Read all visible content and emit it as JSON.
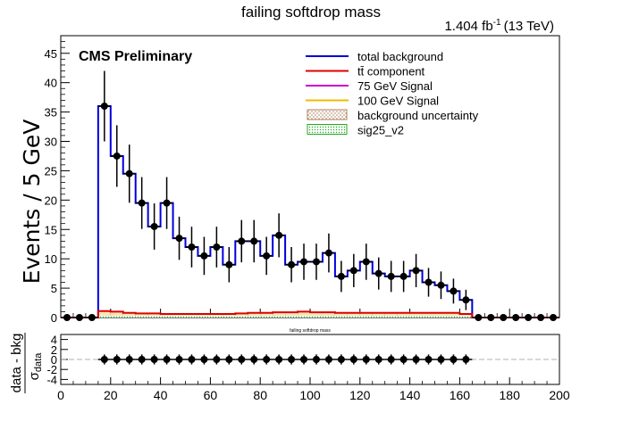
{
  "header": {
    "title": "failing softdrop mass",
    "lumi_label": "1.404 fb",
    "lumi_exp": "-1",
    "energy": "(13 TeV)",
    "cms_label": "CMS Preliminary",
    "ratio_title": "failing softdrop mass"
  },
  "legend": {
    "items": [
      {
        "label": "total background",
        "color": "#0000dd",
        "kind": "line"
      },
      {
        "label": "tt̄ component",
        "color": "#dd0000",
        "kind": "line"
      },
      {
        "label": "75 GeV Signal",
        "color": "#cc00cc",
        "kind": "line"
      },
      {
        "label": "100 GeV Signal",
        "color": "#eebb00",
        "kind": "line"
      },
      {
        "label": "background uncertainty",
        "color": "#b08060",
        "kind": "hatch"
      },
      {
        "label": "sig25_v2",
        "color": "#22aa22",
        "kind": "fill"
      }
    ]
  },
  "chart_data": [
    {
      "type": "bar",
      "panel": "main",
      "title": "failing softdrop mass",
      "ylabel": "Events / 5 GeV",
      "xlim": [
        0,
        200
      ],
      "ylim": [
        0,
        48
      ],
      "yticks": [
        0,
        5,
        10,
        15,
        20,
        25,
        30,
        35,
        40,
        45
      ],
      "bin_edges": [
        0,
        5,
        10,
        15,
        20,
        25,
        30,
        35,
        40,
        45,
        50,
        55,
        60,
        65,
        70,
        75,
        80,
        85,
        90,
        95,
        100,
        105,
        110,
        115,
        120,
        125,
        130,
        135,
        140,
        145,
        150,
        155,
        160,
        165,
        170,
        175,
        180,
        185,
        190,
        195,
        200
      ],
      "series": [
        {
          "name": "total background",
          "color": "#0000dd",
          "values": [
            0,
            0,
            0,
            36,
            27.5,
            24.5,
            19.5,
            15.5,
            19.5,
            13.5,
            12,
            10.5,
            12,
            9,
            13,
            13,
            10.5,
            14,
            9,
            9.5,
            9.5,
            11,
            7,
            8,
            9.5,
            7.5,
            7,
            7,
            8,
            6,
            5.5,
            4.5,
            3,
            0,
            0,
            0,
            0,
            0,
            0,
            0
          ]
        },
        {
          "name": "tt̄ component",
          "color": "#dd0000",
          "values": [
            0,
            0,
            0,
            1.1,
            1.0,
            0.8,
            0.7,
            0.7,
            0.6,
            0.6,
            0.6,
            0.6,
            0.6,
            0.6,
            0.7,
            0.8,
            0.8,
            0.9,
            0.9,
            1.0,
            0.9,
            0.9,
            0.8,
            0.8,
            0.8,
            0.8,
            0.8,
            0.8,
            0.8,
            0.8,
            0.8,
            0.8,
            0.6,
            0,
            0,
            0,
            0,
            0,
            0,
            0
          ]
        },
        {
          "name": "sig25_v2",
          "color": "#22aa22",
          "values": [
            0,
            0,
            0,
            0.3,
            0.3,
            0.3,
            0.3,
            0.3,
            0.3,
            0.3,
            0.3,
            0.3,
            0.3,
            0.3,
            0.3,
            0.3,
            0.3,
            0.3,
            0.3,
            0.3,
            0.3,
            0.3,
            0.3,
            0.3,
            0.3,
            0.3,
            0.3,
            0.3,
            0.3,
            0.3,
            0.3,
            0.3,
            0.3,
            0,
            0,
            0,
            0,
            0,
            0,
            0
          ]
        }
      ],
      "data_points": {
        "x": [
          2.5,
          7.5,
          12.5,
          17.5,
          22.5,
          27.5,
          32.5,
          37.5,
          42.5,
          47.5,
          52.5,
          57.5,
          62.5,
          67.5,
          72.5,
          77.5,
          82.5,
          87.5,
          92.5,
          97.5,
          102.5,
          107.5,
          112.5,
          117.5,
          122.5,
          127.5,
          132.5,
          137.5,
          142.5,
          147.5,
          152.5,
          157.5,
          162.5,
          167.5,
          172.5,
          177.5,
          182.5,
          187.5,
          192.5,
          197.5
        ],
        "y": [
          0,
          0,
          0,
          36,
          27.5,
          24.5,
          19.5,
          15.5,
          19.5,
          13.5,
          12,
          10.5,
          12,
          9,
          13,
          13,
          10.5,
          14,
          9,
          9.5,
          9.5,
          11,
          7,
          8,
          9.5,
          7.5,
          7,
          7,
          8,
          6,
          5.5,
          4.5,
          3,
          0,
          0,
          0,
          0,
          0,
          0,
          0
        ]
      }
    },
    {
      "type": "scatter",
      "panel": "ratio",
      "title": "failing softdrop mass",
      "ylabel": "data - bkg / σ data",
      "xlim": [
        0,
        200
      ],
      "ylim": [
        -5,
        5
      ],
      "xticks": [
        0,
        20,
        40,
        60,
        80,
        100,
        120,
        140,
        160,
        180,
        200
      ],
      "yticks": [
        -4,
        -2,
        0,
        2,
        4
      ],
      "x": [
        17.5,
        22.5,
        27.5,
        32.5,
        37.5,
        42.5,
        47.5,
        52.5,
        57.5,
        62.5,
        67.5,
        72.5,
        77.5,
        82.5,
        87.5,
        92.5,
        97.5,
        102.5,
        107.5,
        112.5,
        117.5,
        122.5,
        127.5,
        132.5,
        137.5,
        142.5,
        147.5,
        152.5,
        157.5,
        162.5
      ],
      "y": [
        0,
        0,
        0,
        0,
        0,
        0,
        0,
        0,
        0,
        0,
        0,
        0,
        0,
        0,
        0,
        0,
        0,
        0,
        0,
        0,
        0,
        0,
        0,
        0,
        0,
        0,
        0,
        0,
        0,
        0
      ],
      "reference_line": 0
    }
  ]
}
